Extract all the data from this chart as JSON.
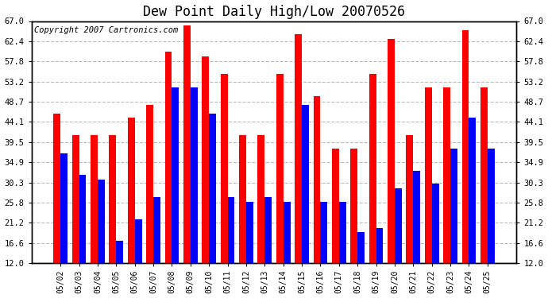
{
  "title": "Dew Point Daily High/Low 20070526",
  "copyright": "Copyright 2007 Cartronics.com",
  "dates": [
    "05/02",
    "05/03",
    "05/04",
    "05/05",
    "05/06",
    "05/07",
    "05/08",
    "05/09",
    "05/10",
    "05/11",
    "05/12",
    "05/13",
    "05/14",
    "05/15",
    "05/16",
    "05/17",
    "05/18",
    "05/19",
    "05/20",
    "05/21",
    "05/22",
    "05/23",
    "05/24",
    "05/25"
  ],
  "highs": [
    46.0,
    41.0,
    41.0,
    41.0,
    45.0,
    48.0,
    60.0,
    66.0,
    59.0,
    55.0,
    41.0,
    41.0,
    55.0,
    64.0,
    50.0,
    38.0,
    38.0,
    55.0,
    63.0,
    41.0,
    52.0,
    52.0,
    65.0,
    52.0
  ],
  "lows": [
    37.0,
    32.0,
    31.0,
    17.0,
    22.0,
    27.0,
    52.0,
    52.0,
    46.0,
    27.0,
    26.0,
    27.0,
    26.0,
    48.0,
    26.0,
    26.0,
    19.0,
    20.0,
    29.0,
    33.0,
    30.0,
    38.0,
    45.0,
    38.0
  ],
  "ylim": [
    12.0,
    67.0
  ],
  "yticks": [
    12.0,
    16.6,
    21.2,
    25.8,
    30.3,
    34.9,
    39.5,
    44.1,
    48.7,
    53.2,
    57.8,
    62.4,
    67.0
  ],
  "bar_width": 0.38,
  "high_color": "#ff0000",
  "low_color": "#0000ff",
  "bg_color": "#ffffff",
  "grid_color": "#bbbbbb",
  "title_fontsize": 12,
  "copyright_fontsize": 7.5
}
